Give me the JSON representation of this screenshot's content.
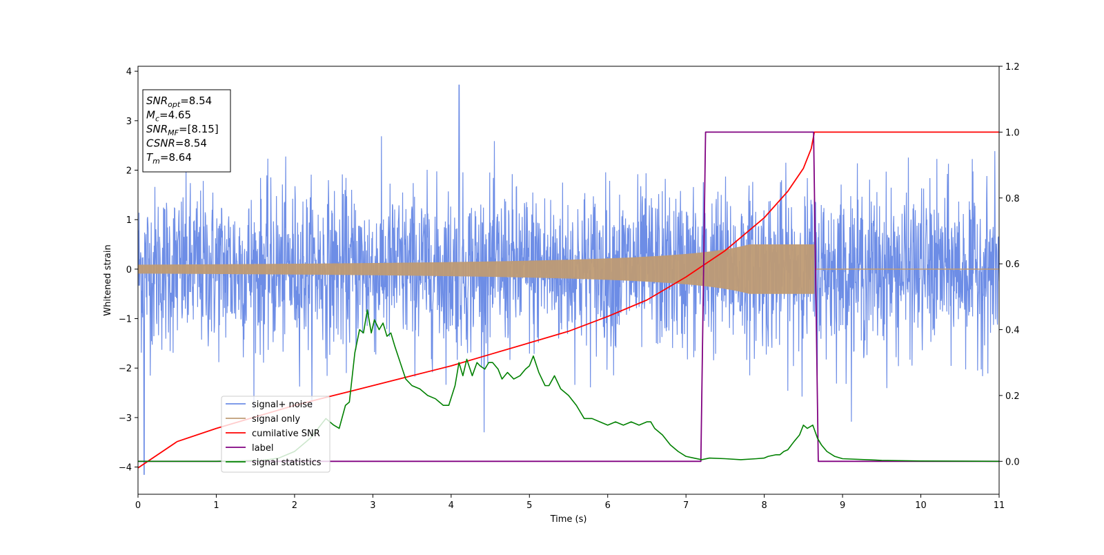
{
  "chart_data": {
    "type": "line",
    "xlabel": "Time (s)",
    "ylabel": "Whitened strain",
    "xlim": [
      0,
      11
    ],
    "ylim_left": [
      -4.55,
      4.1
    ],
    "ylim_right": [
      -0.1,
      1.2
    ],
    "x_ticks": [
      "0",
      "1",
      "2",
      "3",
      "4",
      "5",
      "6",
      "7",
      "8",
      "9",
      "10",
      "11"
    ],
    "y_ticks_left": [
      "4",
      "3",
      "2",
      "1",
      "0",
      "−1",
      "−2",
      "−3",
      "−4"
    ],
    "y_ticks_right": [
      "1.2",
      "1.0",
      "0.8",
      "0.6",
      "0.4",
      "0.2",
      "0.0"
    ],
    "grid": false,
    "legend_position": "lower-left",
    "series": [
      {
        "name": "signal+ noise",
        "axis": "left",
        "color": "#6d8de6",
        "description_values": {
          "typical_amplitude": 1.3,
          "peak": 3.72,
          "peak_time": 4.1,
          "min": -4.15,
          "min_time": 0.08
        }
      },
      {
        "name": "signal only",
        "axis": "left",
        "color": "#bf9b74",
        "description_values": {
          "envelope_start": 0.1,
          "envelope_at_7": 0.18,
          "envelope_peak": 0.5,
          "merger_time": 8.64
        }
      },
      {
        "name": "cumilative SNR",
        "axis": "right",
        "color": "#ff0000",
        "x": [
          0,
          0.5,
          1,
          1.5,
          2,
          2.5,
          3,
          3.5,
          4,
          4.5,
          5,
          5.5,
          6,
          6.5,
          7,
          7.5,
          8,
          8.3,
          8.5,
          8.6,
          8.64,
          9,
          10,
          11
        ],
        "values": [
          -0.02,
          0.06,
          0.1,
          0.135,
          0.17,
          0.2,
          0.23,
          0.26,
          0.29,
          0.325,
          0.36,
          0.395,
          0.44,
          0.49,
          0.56,
          0.64,
          0.74,
          0.82,
          0.89,
          0.95,
          1.0,
          1.0,
          1.0,
          1.0
        ]
      },
      {
        "name": "label",
        "axis": "right",
        "color": "#800080",
        "x": [
          0,
          7.19,
          7.25,
          8.63,
          8.69,
          11
        ],
        "values": [
          0,
          0,
          1,
          1,
          0,
          0
        ]
      },
      {
        "name": "signal statistics",
        "axis": "right",
        "color": "#008000",
        "x": [
          0,
          1,
          1.6,
          1.8,
          2.0,
          2.1,
          2.2,
          2.3,
          2.4,
          2.5,
          2.57,
          2.65,
          2.7,
          2.77,
          2.83,
          2.88,
          2.93,
          2.98,
          3.02,
          3.08,
          3.13,
          3.18,
          3.23,
          3.28,
          3.35,
          3.42,
          3.5,
          3.6,
          3.7,
          3.8,
          3.9,
          3.97,
          4.05,
          4.1,
          4.15,
          4.2,
          4.27,
          4.33,
          4.37,
          4.43,
          4.48,
          4.53,
          4.6,
          4.65,
          4.72,
          4.8,
          4.88,
          4.95,
          5.0,
          5.05,
          5.12,
          5.2,
          5.25,
          5.32,
          5.4,
          5.5,
          5.6,
          5.7,
          5.8,
          5.9,
          6.0,
          6.1,
          6.2,
          6.3,
          6.4,
          6.5,
          6.55,
          6.6,
          6.7,
          6.8,
          6.9,
          7.0,
          7.1,
          7.2,
          7.3,
          7.5,
          7.7,
          7.9,
          8.0,
          8.05,
          8.15,
          8.2,
          8.25,
          8.3,
          8.38,
          8.45,
          8.5,
          8.55,
          8.62,
          8.68,
          8.73,
          8.8,
          8.9,
          9.0,
          9.5,
          10,
          11
        ],
        "values": [
          0,
          0,
          0.003,
          0.01,
          0.03,
          0.05,
          0.07,
          0.1,
          0.13,
          0.11,
          0.1,
          0.17,
          0.18,
          0.33,
          0.4,
          0.39,
          0.46,
          0.39,
          0.43,
          0.4,
          0.42,
          0.38,
          0.39,
          0.35,
          0.3,
          0.25,
          0.23,
          0.22,
          0.2,
          0.19,
          0.17,
          0.17,
          0.23,
          0.3,
          0.26,
          0.31,
          0.26,
          0.3,
          0.29,
          0.28,
          0.3,
          0.3,
          0.28,
          0.25,
          0.27,
          0.25,
          0.26,
          0.28,
          0.29,
          0.32,
          0.27,
          0.23,
          0.23,
          0.26,
          0.22,
          0.2,
          0.17,
          0.13,
          0.13,
          0.12,
          0.11,
          0.12,
          0.11,
          0.12,
          0.11,
          0.12,
          0.12,
          0.1,
          0.08,
          0.05,
          0.03,
          0.015,
          0.01,
          0.005,
          0.01,
          0.008,
          0.005,
          0.008,
          0.01,
          0.015,
          0.02,
          0.02,
          0.03,
          0.035,
          0.06,
          0.08,
          0.11,
          0.1,
          0.11,
          0.07,
          0.05,
          0.03,
          0.015,
          0.008,
          0.003,
          0.001,
          0.0
        ]
      }
    ],
    "annotation": {
      "lines": [
        {
          "main": "SNR",
          "sub": "opt",
          "rest": "=8.54"
        },
        {
          "main": "M",
          "sub": "c",
          "rest": "=4.65"
        },
        {
          "main": "SNR",
          "sub": "MF",
          "rest": "=[8.15]"
        },
        {
          "main": "CSNR",
          "sub": "",
          "rest": "=8.54"
        },
        {
          "main": "T",
          "sub": "m",
          "rest": "=8.64"
        }
      ]
    }
  }
}
